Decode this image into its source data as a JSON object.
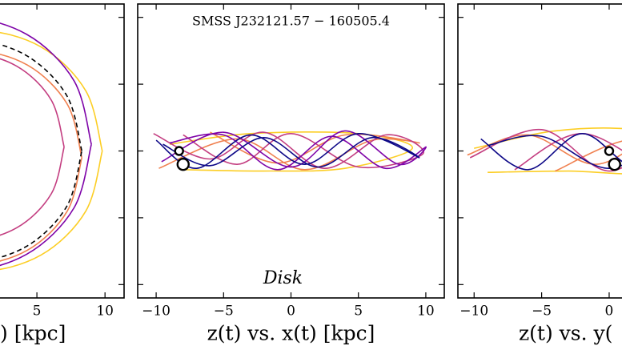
{
  "chart_data": [
    {
      "type": "line",
      "xlabel": ") [kpc]",
      "xlim": [
        -11.4,
        11.4
      ],
      "xticks": [
        5,
        10
      ],
      "ylim": [
        -11,
        11
      ],
      "yticks": [
        -10,
        -5,
        0,
        5,
        10
      ],
      "series": [
        {
          "color": "#fcce25",
          "x": [
            9.8,
            8.59,
            5.3,
            0.8,
            -3.7,
            -6.99,
            -8.2,
            -6.99,
            -3.7,
            0.8,
            5.3,
            8.59,
            9.8
          ],
          "y": [
            0,
            4.5,
            7.79,
            9,
            7.79,
            4.5,
            0,
            -4.5,
            -7.79,
            -9,
            -7.79,
            -4.5,
            0
          ]
        },
        {
          "color": "#f0804f",
          "x": [
            8.3,
            7.23,
            4.3,
            0.3,
            -3.7,
            -6.63,
            -7.7,
            -6.63,
            -3.7,
            0.3,
            4.3,
            7.23,
            8.3
          ],
          "y": [
            -0.5,
            3.5,
            6.43,
            7.5,
            6.43,
            3.5,
            -0.5,
            -4.5,
            -7.43,
            -8.5,
            -7.43,
            -4.5,
            -0.5
          ]
        },
        {
          "color": "#c33d80",
          "x": [
            7,
            6.06,
            3.5,
            0,
            -3.5,
            -6.06,
            -7,
            -6.06,
            -3.5,
            0,
            3.5,
            6.06,
            7
          ],
          "y": [
            0.3,
            3.8,
            6.36,
            7.3,
            6.36,
            3.8,
            0.3,
            -3.2,
            -5.76,
            -6.7,
            -5.76,
            -3.2,
            0.3
          ]
        },
        {
          "color": "#7e03a8",
          "x": [
            9.0,
            7.73,
            4.25,
            -0.5,
            -5.25,
            -8.73,
            -10.0,
            -8.73,
            -5.25,
            -0.5,
            4.25,
            7.73,
            9.0
          ],
          "y": [
            0.5,
            5.25,
            8.73,
            10.0,
            8.73,
            5.25,
            0.5,
            -4.25,
            -7.73,
            -9.0,
            -7.73,
            -4.25,
            0.5
          ]
        },
        {
          "color": "#000000",
          "dashed": true,
          "x": [
            8.3,
            7.19,
            4.15,
            0,
            -4.15,
            -7.19,
            -8.3,
            -7.19,
            -4.15,
            0,
            4.15,
            7.19,
            8.3
          ],
          "y": [
            0,
            4.15,
            7.19,
            8.3,
            7.19,
            4.15,
            0,
            -4.15,
            -7.19,
            -8.3,
            -7.19,
            -4.15,
            0
          ]
        }
      ]
    },
    {
      "type": "line",
      "title": "SMSS J232121.57 − 160505.4",
      "annotation": "Disk",
      "xlabel": "z(t) vs. x(t) [kpc]",
      "xlim": [
        -11.37,
        11.37
      ],
      "xticks": [
        {
          "value": -10,
          "label": "−10"
        },
        {
          "value": -5,
          "label": "−5"
        },
        0,
        5,
        10
      ],
      "ylim": [
        -11,
        11
      ],
      "yticks": [
        -10,
        -5,
        0,
        5,
        10
      ],
      "series": [
        {
          "color": "#fcce25",
          "x": [
            -8,
            -2,
            4,
            9,
            5,
            -3,
            -9
          ],
          "y": [
            -1.4,
            -1.5,
            -1.3,
            0.2,
            1.3,
            1.3,
            0.5
          ]
        },
        {
          "color": "#f0804f",
          "x": [
            -9.8,
            -4,
            1,
            6,
            9.5,
            4,
            -1,
            -6
          ],
          "y": [
            -1.3,
            0.9,
            -1.4,
            0.8,
            0.6,
            1.2,
            -0.9,
            1.4
          ]
        },
        {
          "color": "#c33d80",
          "x": [
            -10.2,
            -6,
            -2,
            2.5,
            7,
            9.8,
            5,
            0,
            -4,
            -8
          ],
          "y": [
            1.3,
            -0.6,
            1.4,
            -1.3,
            1.2,
            -0.2,
            -1.2,
            1.3,
            -1.0,
            1.2
          ]
        },
        {
          "color": "#7e03a8",
          "x": [
            -9.6,
            -5,
            0,
            4,
            8,
            10,
            7,
            3,
            -1,
            -5,
            -9
          ],
          "y": [
            -0.8,
            1.4,
            -1.2,
            1.5,
            -1.0,
            0.3,
            -1.3,
            1.1,
            -1.4,
            1.2,
            0.6
          ]
        },
        {
          "color": "#0d0887",
          "x": [
            -10,
            -7,
            -3,
            1,
            5,
            9.5,
            6,
            2,
            -2,
            -6,
            -9.5
          ],
          "y": [
            0.8,
            -1.3,
            1.2,
            -1.0,
            1.3,
            -0.5,
            1.0,
            -1.2,
            1.0,
            -1.1,
            0.5
          ]
        }
      ],
      "markers": {
        "x": [
          -8.3,
          -8.0
        ],
        "y": [
          0,
          -1.0
        ]
      }
    },
    {
      "type": "line",
      "xlabel": "z(t) vs. y(",
      "xlim": [
        -11.2,
        11.5
      ],
      "xticks": [
        {
          "value": -10,
          "label": "−10"
        },
        {
          "value": -5,
          "label": "−5"
        },
        0
      ],
      "ylim": [
        -11,
        11
      ],
      "yticks": [
        -10,
        -5,
        0,
        5,
        10
      ],
      "series": [
        {
          "color": "#fcce25",
          "x": [
            -9,
            -3,
            3,
            8,
            2,
            -4,
            -10
          ],
          "y": [
            -1.6,
            -1.5,
            -1.6,
            0.3,
            1.6,
            1.5,
            0.2
          ]
        },
        {
          "color": "#f0804f",
          "x": [
            -10.5,
            -6,
            -1,
            4,
            8,
            2,
            -4
          ],
          "y": [
            -0.3,
            1.2,
            -1.0,
            1.3,
            -1.2,
            0.9,
            -1.5
          ]
        },
        {
          "color": "#c33d80",
          "x": [
            -10.3,
            -5,
            0,
            5,
            9,
            4,
            -2,
            -7
          ],
          "y": [
            -0.5,
            1.6,
            -1.5,
            1.4,
            -0.8,
            -1.5,
            1.3,
            -1.4
          ]
        },
        {
          "color": "#0d0887",
          "x": [
            -9.5,
            -6,
            -2,
            2,
            6,
            10,
            5,
            0,
            -5,
            -9
          ],
          "y": [
            0.9,
            -1.4,
            1.3,
            -1.2,
            1.5,
            -0.4,
            1.2,
            -1.3,
            1.1,
            0.4
          ]
        }
      ],
      "markers": {
        "x": [
          0,
          0.4
        ],
        "y": [
          0,
          -1.0
        ]
      }
    }
  ]
}
